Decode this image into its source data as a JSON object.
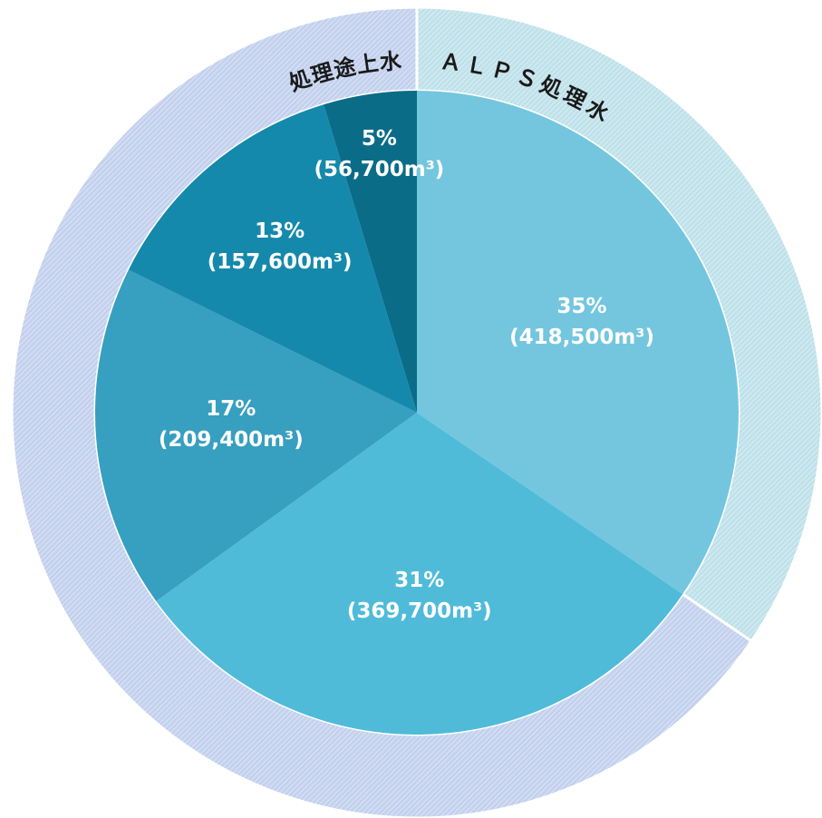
{
  "chart_data": {
    "type": "pie",
    "values": [
      35,
      31,
      17,
      13,
      5
    ],
    "value_labels": [
      "35%",
      "31%",
      "17%",
      "13%",
      "5%"
    ],
    "volumes": [
      418500,
      369700,
      209400,
      157600,
      56700
    ],
    "volume_labels": [
      "(418,500m³)",
      "(369,700m³)",
      "(209,400m³)",
      "(157,600m³)",
      "(56,700m³)"
    ],
    "colors": [
      "#74c6df",
      "#4fbbd9",
      "#379fc0",
      "#1589ab",
      "#0b6c88"
    ],
    "groups": [
      {
        "name": "ＡＬＰＳ処理水",
        "members": [
          0
        ],
        "color": "#bfe1ea"
      },
      {
        "name": "処理途上水",
        "members": [
          1,
          2,
          3,
          4
        ],
        "color": "#c3d1ee"
      }
    ]
  }
}
